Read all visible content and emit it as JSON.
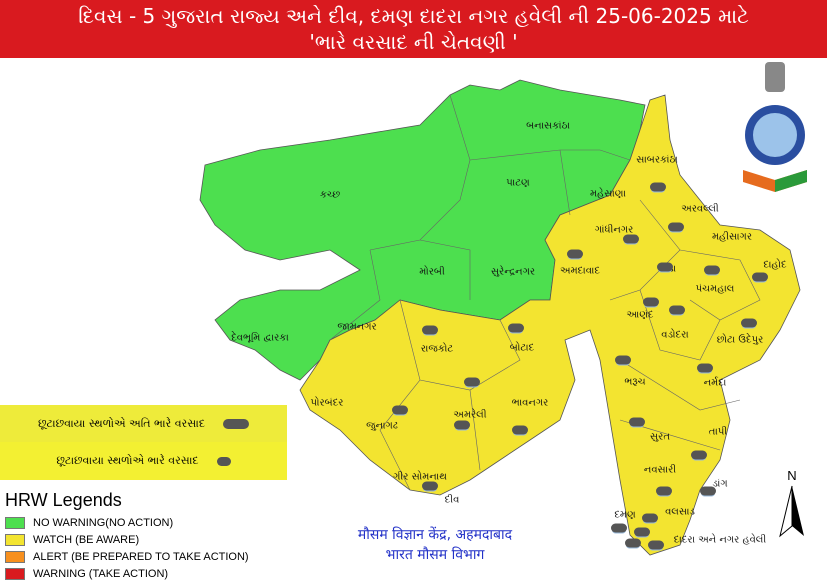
{
  "header": {
    "line1": "દિવસ - 5  ગુજરાત રાજ્ય અને દીવ, દમણ દાદરા નગર હવેલી ની  25-06-2025 માટે",
    "line2": "'ભારે વરસાદ ની ચેતવણી '"
  },
  "colors": {
    "no_warning": "#4ddf4f",
    "watch": "#f3e430",
    "alert": "#f7901e",
    "warning": "#d91a1f",
    "header_bg": "#d91a1f"
  },
  "rain_boxes": [
    {
      "text": "છૂટાછવાયા સ્થળોએ અતિ ભારે વરસાદ",
      "icon": "heavy-rain-cloud-icon"
    },
    {
      "text": "છૂટાછવાયા સ્થળોએ ભારે વરસાદ",
      "icon": "rain-cloud-icon"
    }
  ],
  "legend": {
    "title": "HRW Legends",
    "items": [
      {
        "label": "NO WARNING(NO ACTION)",
        "color": "#4ddf4f"
      },
      {
        "label": "WATCH (BE AWARE)",
        "color": "#f3e430"
      },
      {
        "label": "ALERT (BE PREPARED TO TAKE ACTION)",
        "color": "#f7901e"
      },
      {
        "label": "WARNING (TAKE ACTION)",
        "color": "#d91a1f"
      }
    ]
  },
  "districts": [
    {
      "name": "બનાસકાંઠા",
      "level": "no_warning"
    },
    {
      "name": "કચ્છ",
      "level": "no_warning"
    },
    {
      "name": "પાટણ",
      "level": "no_warning"
    },
    {
      "name": "મહેસાણા",
      "level": "no_warning"
    },
    {
      "name": "સાબરકાંઠા",
      "level": "watch"
    },
    {
      "name": "અરવલ્લી",
      "level": "watch"
    },
    {
      "name": "ગાંધીનગર",
      "level": "watch"
    },
    {
      "name": "મહીસાગર",
      "level": "watch"
    },
    {
      "name": "અમદાવાદ",
      "level": "watch"
    },
    {
      "name": "ખેડા",
      "level": "watch"
    },
    {
      "name": "દાહોદ",
      "level": "watch"
    },
    {
      "name": "પંચમહાલ",
      "level": "watch"
    },
    {
      "name": "મોરબી",
      "level": "no_warning"
    },
    {
      "name": "સુરેન્દ્રનગર",
      "level": "no_warning"
    },
    {
      "name": "આણંદ",
      "level": "watch"
    },
    {
      "name": "વડોદરા",
      "level": "watch"
    },
    {
      "name": "છોટા ઉદેપુર",
      "level": "watch"
    },
    {
      "name": "જામનગર",
      "level": "no_warning"
    },
    {
      "name": "દેવભૂમિ દ્વારકા",
      "level": "no_warning"
    },
    {
      "name": "રાજકોટ",
      "level": "watch"
    },
    {
      "name": "બોટાદ",
      "level": "watch"
    },
    {
      "name": "ભરૂચ",
      "level": "watch"
    },
    {
      "name": "નર્મદા",
      "level": "watch"
    },
    {
      "name": "પોરબંદર",
      "level": "watch"
    },
    {
      "name": "અમરેલી",
      "level": "watch"
    },
    {
      "name": "ભાવનગર",
      "level": "watch"
    },
    {
      "name": "જુનાગઢ",
      "level": "watch"
    },
    {
      "name": "સુરત",
      "level": "watch"
    },
    {
      "name": "તાપી",
      "level": "watch"
    },
    {
      "name": "નવસારી",
      "level": "watch"
    },
    {
      "name": "ડાંગ",
      "level": "watch"
    },
    {
      "name": "ગીર સોમનાથ",
      "level": "watch"
    },
    {
      "name": "દીવ",
      "level": "watch"
    },
    {
      "name": "દમણ",
      "level": "watch"
    },
    {
      "name": "વલસાડ",
      "level": "watch"
    },
    {
      "name": "દાદરા અને નગર હવેલી",
      "level": "watch"
    }
  ],
  "footer": {
    "line1": "मौसम विज्ञान केंद्र, अहमदाबाद",
    "line2": "भारत मौसम विभाग"
  },
  "north_label": "N"
}
